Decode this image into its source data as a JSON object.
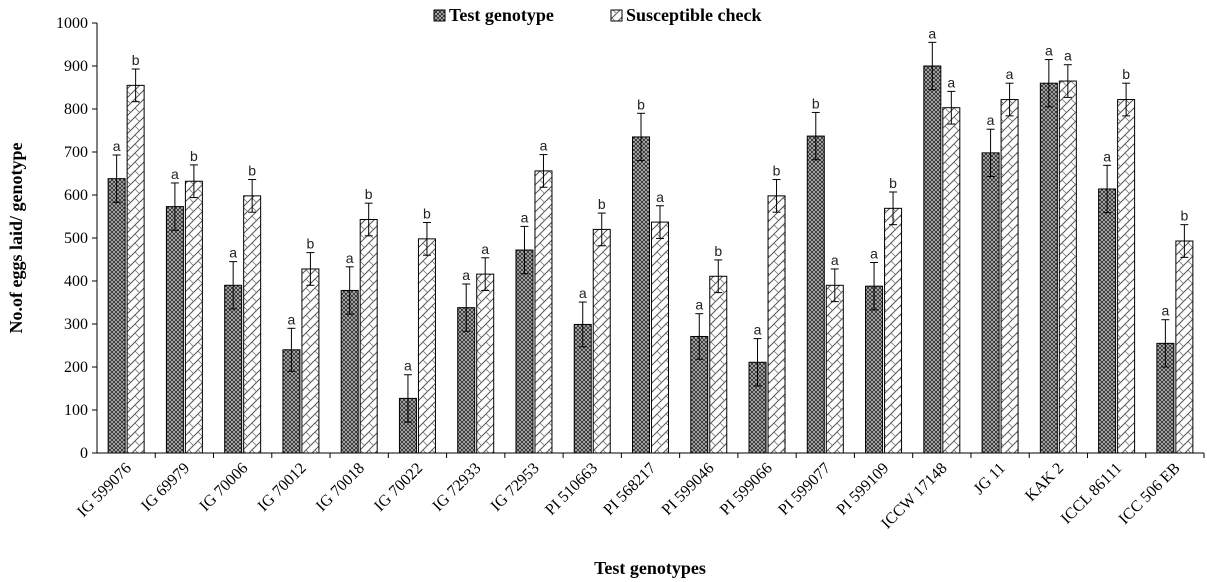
{
  "chart_data": {
    "type": "bar",
    "title": "",
    "xlabel": "Test genotypes",
    "ylabel": "No.of eggs laid/ genotype",
    "ylim": [
      0,
      1000
    ],
    "yticks": [
      0,
      100,
      200,
      300,
      400,
      500,
      600,
      700,
      800,
      900,
      1000
    ],
    "grid": false,
    "legend_position": "top-center",
    "categories": [
      "IG 599076",
      "IG 69979",
      "IG 70006",
      "IG 70012",
      "IG 70018",
      "IG 70022",
      "IG 72933",
      "IG 72953",
      "PI 510663",
      "PI 568217",
      "PI 599046",
      "PI 599066",
      "PI 599077",
      "PI 599109",
      "ICCW 17148",
      "JG 11",
      "KAK 2",
      "ICCL 86111",
      "ICC 506 EB"
    ],
    "series": [
      {
        "name": "Test genotype",
        "pattern": "crosshatch",
        "values": [
          638,
          573,
          390,
          240,
          378,
          127,
          338,
          472,
          299,
          735,
          271,
          211,
          737,
          388,
          900,
          698,
          860,
          614,
          255
        ],
        "error": [
          55,
          55,
          55,
          50,
          55,
          55,
          55,
          55,
          52,
          55,
          53,
          55,
          55,
          55,
          55,
          55,
          55,
          55,
          55
        ],
        "significance": [
          "a",
          "a",
          "a",
          "a",
          "a",
          "a",
          "a",
          "a",
          "a",
          "b",
          "a",
          "a",
          "b",
          "a",
          "a",
          "a",
          "a",
          "a",
          "a"
        ]
      },
      {
        "name": "Susceptible check",
        "pattern": "zigzag",
        "values": [
          855,
          632,
          598,
          428,
          543,
          498,
          416,
          656,
          520,
          537,
          411,
          598,
          390,
          569,
          803,
          822,
          865,
          822,
          493
        ],
        "error": [
          38,
          38,
          38,
          38,
          38,
          38,
          38,
          38,
          38,
          38,
          38,
          38,
          38,
          38,
          38,
          38,
          38,
          38,
          38
        ],
        "significance": [
          "b",
          "b",
          "b",
          "b",
          "b",
          "b",
          "a",
          "a",
          "b",
          "a",
          "b",
          "b",
          "a",
          "b",
          "a",
          "a",
          "a",
          "b",
          "b"
        ]
      }
    ]
  }
}
